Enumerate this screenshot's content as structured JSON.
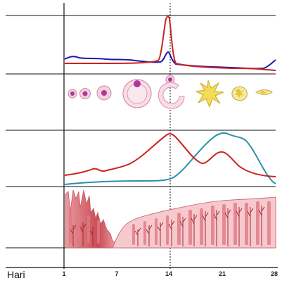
{
  "axis": {
    "label": "Hari",
    "ticks": [
      "1",
      "7",
      "14",
      "21",
      "28"
    ]
  },
  "colors": {
    "lh": "#cc2222",
    "fsh": "#1a1aaa",
    "estrogen": "#cc2222",
    "progesterone": "#2a90aa",
    "follicle_fill": "#f7d0dd",
    "follicle_core": "#b0349a",
    "corpus_luteum": "#f3dc58",
    "endometrium": "#e07a84"
  },
  "rows": [
    {
      "name": "gonadotropins",
      "icon": "lh-fsh-curves"
    },
    {
      "name": "ovary",
      "icon": "follicle-development"
    },
    {
      "name": "ovarian-hormones",
      "icon": "estrogen-progesterone-curves"
    },
    {
      "name": "uterus",
      "icon": "endometrium-layer"
    }
  ]
}
